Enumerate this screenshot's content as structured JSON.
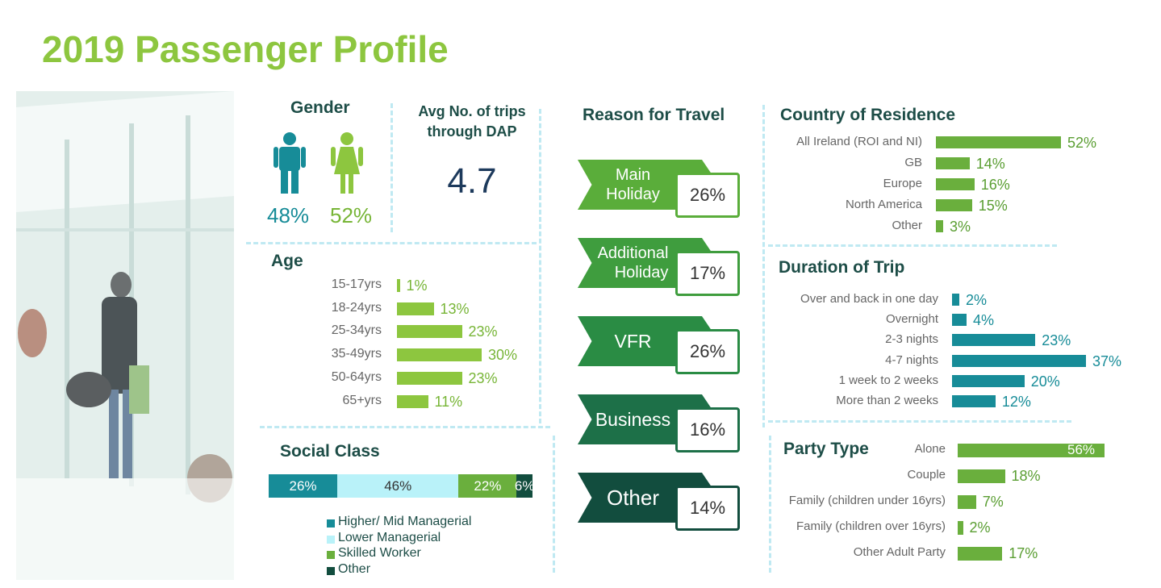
{
  "title": "2019 Passenger Profile",
  "colors": {
    "title": "#8dc63f",
    "teal": "#178c98",
    "green": "#6aaf3d",
    "light_green": "#8dc63f",
    "dark_green": "#1d4d47"
  },
  "gender": {
    "heading": "Gender",
    "male": {
      "icon": "male-person-icon",
      "value": "48%"
    },
    "female": {
      "icon": "female-person-icon",
      "value": "52%"
    }
  },
  "trips": {
    "heading_line1": "Avg No. of trips",
    "heading_line2": "through DAP",
    "value": "4.7"
  },
  "reason": {
    "heading": "Reason for Travel",
    "items": [
      {
        "line1": "Main",
        "line2": "Holiday",
        "value": "26%",
        "color": "#5aad3a"
      },
      {
        "line1": "Additional",
        "line2": "Holiday",
        "value": "17%",
        "color": "#3f9d3e"
      },
      {
        "line1": "VFR",
        "line2": "",
        "value": "26%",
        "color": "#2a8c44"
      },
      {
        "line1": "Business",
        "line2": "",
        "value": "16%",
        "color": "#1d7048"
      },
      {
        "line1": "Other",
        "line2": "",
        "value": "14%",
        "color": "#124d3e"
      }
    ]
  },
  "chart_data": [
    {
      "type": "bar",
      "title": "Age",
      "categories": [
        "15-17yrs",
        "18-24yrs",
        "25-34yrs",
        "35-49yrs",
        "50-64yrs",
        "65+yrs"
      ],
      "values": [
        1,
        13,
        23,
        30,
        23,
        11
      ],
      "labels": [
        "1%",
        "13%",
        "23%",
        "30%",
        "23%",
        "11%"
      ],
      "xlim": [
        0,
        30
      ]
    },
    {
      "type": "bar",
      "title": "Social Class",
      "stacked": true,
      "categories": [
        "Higher/ Mid Managerial",
        "Lower Managerial",
        "Skilled Worker",
        "Other"
      ],
      "values": [
        26,
        46,
        22,
        6
      ],
      "labels": [
        "26%",
        "46%",
        "22%",
        "6%"
      ],
      "colors": [
        "#178c98",
        "#b9f2f9",
        "#6aaf3d",
        "#124d3e"
      ]
    },
    {
      "type": "bar",
      "title": "Country of Residence",
      "categories": [
        "All Ireland (ROI and NI)",
        "GB",
        "Europe",
        "North America",
        "Other"
      ],
      "values": [
        52,
        14,
        16,
        15,
        3
      ],
      "labels": [
        "52%",
        "14%",
        "16%",
        "15%",
        "3%"
      ],
      "xlim": [
        0,
        52
      ]
    },
    {
      "type": "bar",
      "title": "Duration of Trip",
      "categories": [
        "Over and back in one day",
        "Overnight",
        "2-3 nights",
        "4-7 nights",
        "1 week to 2 weeks",
        "More than 2 weeks"
      ],
      "values": [
        2,
        4,
        23,
        37,
        20,
        12
      ],
      "labels": [
        "2%",
        "4%",
        "23%",
        "37%",
        "20%",
        "12%"
      ],
      "xlim": [
        0,
        37
      ]
    },
    {
      "type": "bar",
      "title": "Party Type",
      "categories": [
        "Alone",
        "Couple",
        "Family (children under 16yrs)",
        "Family (children over 16yrs)",
        "Other Adult Party"
      ],
      "values": [
        56,
        18,
        7,
        2,
        17
      ],
      "labels": [
        "56%",
        "18%",
        "7%",
        "2%",
        "17%"
      ],
      "xlim": [
        0,
        56
      ]
    }
  ]
}
